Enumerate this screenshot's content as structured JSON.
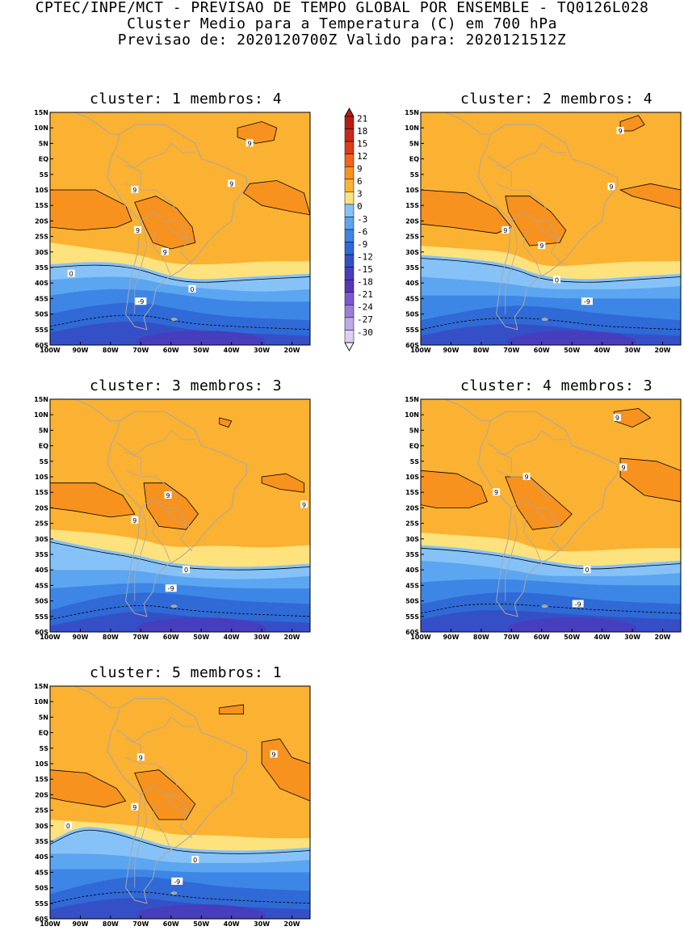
{
  "header": {
    "line1": "CPTEC/INPE/MCT - PREVISAO DE TEMPO GLOBAL POR ENSEMBLE - TQ0126L028",
    "line2": "Cluster Medio para a Temperatura (C) em 700 hPa",
    "line3": "Previsao de: 2020120700Z   Valido para: 2020121512Z"
  },
  "axes": {
    "lat_labels": [
      "15N",
      "10N",
      "5N",
      "EQ",
      "5S",
      "10S",
      "15S",
      "20S",
      "25S",
      "30S",
      "35S",
      "40S",
      "45S",
      "50S",
      "55S",
      "60S"
    ],
    "lon_labels": [
      "100W",
      "90W",
      "80W",
      "70W",
      "60W",
      "50W",
      "40W",
      "30W",
      "20W"
    ]
  },
  "colorbar": {
    "levels": [
      "21",
      "18",
      "15",
      "12",
      "9",
      "6",
      "3",
      "0",
      "-3",
      "-6",
      "-9",
      "-12",
      "-15",
      "-18",
      "-21",
      "-24",
      "-27",
      "-30"
    ],
    "colors": [
      "#b51e12",
      "#c8281a",
      "#e03a18",
      "#f0641c",
      "#f7921e",
      "#fbb132",
      "#fde27e",
      "#86c2f7",
      "#5ca5f0",
      "#3d86e6",
      "#2f6ad6",
      "#3550c6",
      "#463ebd",
      "#5a35b8",
      "#7a5ad0",
      "#9a80dc",
      "#bdaae8",
      "#ddd0f4"
    ]
  },
  "panels": [
    {
      "title": "cluster: 1   membros: 4",
      "labels": [
        "9",
        "9",
        "9",
        "9",
        "9",
        "0",
        "0",
        "-9"
      ]
    },
    {
      "title": "cluster: 2   membros: 4",
      "labels": [
        "9",
        "9",
        "9",
        "9",
        "0",
        "-9"
      ]
    },
    {
      "title": "cluster: 3   membros: 3",
      "labels": [
        "9",
        "9",
        "9",
        "0",
        "-9"
      ]
    },
    {
      "title": "cluster: 4   membros: 3",
      "labels": [
        "9",
        "9",
        "9",
        "9",
        "0",
        "-9"
      ]
    },
    {
      "title": "cluster: 5   membros: 1",
      "labels": [
        "9",
        "9",
        "9",
        "0",
        "0",
        "-9"
      ]
    }
  ]
}
